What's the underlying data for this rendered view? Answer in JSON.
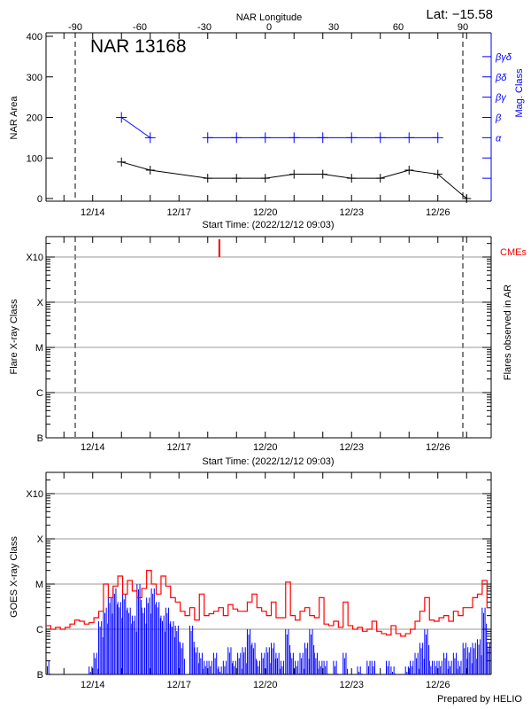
{
  "header": {
    "lat_label": "Lat: −15.58",
    "region_title": "NAR 13168"
  },
  "footer": {
    "credit": "Prepared by HELIO"
  },
  "colors": {
    "axis": "#000000",
    "mag_class": "#0000ff",
    "grid": "#999999",
    "goes_long": "#ff0000",
    "goes_short": "#0000ff",
    "cme": "#ff0000"
  },
  "chart_data": [
    {
      "type": "line",
      "panel": "nar",
      "title": "NAR 13168",
      "xlabel": "Start Time: (2022/12/12 09:03)",
      "xlim": [
        "2022-12-12 09:03",
        "2022-12-27 20:20"
      ],
      "x_tick_labels": [
        "12/14",
        "12/17",
        "12/20",
        "12/23",
        "12/26"
      ],
      "x_tick_dates": [
        "2022-12-14 00:00",
        "2022-12-17 00:00",
        "2022-12-20 00:00",
        "2022-12-23 00:00",
        "2022-12-26 00:00"
      ],
      "ylabel": "NAR Area",
      "ylim": [
        0,
        400
      ],
      "y_ticks": [
        "0",
        "100",
        "200",
        "300",
        "400"
      ],
      "top_axis": {
        "label": "NAR Longitude",
        "ticks": [
          "-90",
          "-60",
          "-30",
          "0",
          "30",
          "60",
          "90"
        ]
      },
      "limb_longitudes": [
        -90,
        90
      ],
      "right_axis": {
        "label": "Mag. Class",
        "levels": [
          "α",
          "β",
          "βγ",
          "βδ",
          "βγδ"
        ]
      },
      "area": {
        "x": [
          "2022-12-15 00:00",
          "2022-12-16 00:00",
          "2022-12-18 00:00",
          "2022-12-19 00:00",
          "2022-12-20 00:00",
          "2022-12-21 00:00",
          "2022-12-22 00:00",
          "2022-12-23 00:00",
          "2022-12-24 00:00",
          "2022-12-25 00:00",
          "2022-12-26 00:00",
          "2022-12-27 00:00"
        ],
        "y": [
          90,
          70,
          50,
          50,
          50,
          60,
          60,
          50,
          50,
          70,
          60,
          0
        ]
      },
      "mag_class": {
        "x": [
          "2022-12-15 00:00",
          "2022-12-16 00:00",
          "2022-12-18 00:00",
          "2022-12-19 00:00",
          "2022-12-20 00:00",
          "2022-12-21 00:00",
          "2022-12-22 00:00",
          "2022-12-23 00:00",
          "2022-12-24 00:00",
          "2022-12-25 00:00",
          "2022-12-26 00:00"
        ],
        "y": [
          "β",
          "α",
          "α",
          "α",
          "α",
          "α",
          "α",
          "α",
          "α",
          "α",
          "α"
        ]
      }
    },
    {
      "type": "scatter",
      "panel": "flares",
      "xlabel": "Start Time: (2022/12/12 09:03)",
      "x_tick_labels": [
        "12/14",
        "12/17",
        "12/20",
        "12/23",
        "12/26"
      ],
      "ylabel": "Flare X-ray Class",
      "right_label": "Flares observed in AR",
      "y_tick_labels": [
        "B",
        "C",
        "M",
        "X",
        "X10"
      ],
      "grid": true,
      "flares": [],
      "cmes": {
        "label": "CMEs",
        "times": [
          "2022-12-18 09:40"
        ]
      }
    },
    {
      "type": "line",
      "panel": "goes",
      "x_tick_labels": [
        "12/14",
        "12/17",
        "12/20",
        "12/23",
        "12/26"
      ],
      "ylabel": "GOES X-ray Class",
      "y_tick_labels": [
        "B",
        "C",
        "M",
        "X",
        "X10"
      ],
      "grid": true,
      "x_start": "2022-12-12 09:00",
      "x_step_hours": 4,
      "series": [
        {
          "color": "#ff0000",
          "values": [
            "C1.2",
            "C1.0",
            "C1.1",
            "C1.0",
            "C1.1",
            "C1.3",
            "C1.6",
            "C1.5",
            "C1.3",
            "C1.4",
            "C1.8",
            "C2.5",
            "M1.0",
            "C5.0",
            "C9.0",
            "M1.5",
            "C6.0",
            "M1.2",
            "C7.0",
            "C5.0",
            "C8.0",
            "M2.0",
            "M1.0",
            "C6.0",
            "M1.5",
            "C9.0",
            "C5.0",
            "C4.0",
            "C2.5",
            "C2.0",
            "C3.0",
            "C1.6",
            "C6.0",
            "C2.0",
            "C2.2",
            "C2.5",
            "C3.0",
            "C2.0",
            "C3.5",
            "C2.8",
            "C2.5",
            "C2.5",
            "C4.0",
            "C6.0",
            "C3.0",
            "C2.5",
            "C2.0",
            "C4.0",
            "C1.8",
            "C1.8",
            "M1.1",
            "C2.0",
            "C1.6",
            "C2.5",
            "C3.0",
            "C2.0",
            "C1.8",
            "C5.0",
            "C1.3",
            "C1.2",
            "C1.5",
            "C1.1",
            "C4.0",
            "C1.2",
            "C1.0",
            "C1.1",
            "B9.0",
            "C1.0",
            "C1.5",
            "B9.0",
            "B8.0",
            "B7.5",
            "C1.2",
            "B8.0",
            "B7.0",
            "B8.0",
            "C1.0",
            "C1.5",
            "C2.5",
            "C5.0",
            "C1.6",
            "C1.5",
            "C1.8",
            "C2.0",
            "C1.5",
            "C2.5",
            "C2.0",
            "C3.0",
            "C3.0",
            "C5.0",
            "C6.0",
            "M1.2",
            "C3.0",
            "C2.5"
          ]
        },
        {
          "color": "#0000ff",
          "values": [
            "B2.0",
            null,
            null,
            null,
            null,
            null,
            null,
            null,
            null,
            "B1.5",
            "B3.0",
            "C1.5",
            "C3.0",
            "C5.0",
            "C8.0",
            "C4.0",
            "C6.0",
            "C3.0",
            "C2.0",
            "M1.0",
            "C3.0",
            "C5.0",
            "C8.0",
            "C4.0",
            "C2.0",
            "C3.0",
            "C1.5",
            "C1.2",
            "B5.0",
            null,
            "C1.2",
            "B4.0",
            "B3.0",
            "B2.0",
            "B2.0",
            "B3.0",
            "B1.5",
            "B2.0",
            "B4.0",
            "B2.0",
            "B3.0",
            "B4.0",
            "C1.0",
            "B5.0",
            "B2.0",
            "B3.0",
            "B4.0",
            "B5.0",
            "B3.0",
            "B2.0",
            "C1.0",
            "B3.0",
            "B2.0",
            "B3.0",
            "B5.0",
            "C1.0",
            "B3.0",
            "B2.0",
            "B2.0",
            null,
            "B2.0",
            null,
            "B3.0",
            null,
            null,
            "B1.5",
            null,
            "B2.0",
            "B2.0",
            null,
            null,
            "B2.0",
            "B1.5",
            null,
            null,
            "B1.5",
            "B2.0",
            "B3.0",
            "B5.0",
            "C1.0",
            "B2.0",
            "B2.0",
            "B2.0",
            "B3.0",
            "B2.0",
            "B3.0",
            "B2.0",
            "B5.0",
            "B4.0",
            "B5.0",
            "B6.0",
            "C3.0",
            "B5.0",
            "C1.0"
          ]
        }
      ]
    }
  ]
}
